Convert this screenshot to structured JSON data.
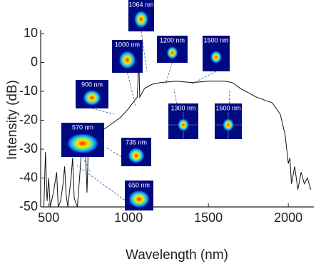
{
  "chart_data": {
    "type": "line",
    "xlabel": "Wavelength (nm)",
    "ylabel": "Intensity (dB)",
    "xlim": [
      450,
      2160
    ],
    "ylim": [
      -50,
      10
    ],
    "xticks": [
      500,
      1000,
      1500,
      2000
    ],
    "yticks": [
      -50,
      -40,
      -30,
      -20,
      -10,
      0,
      10
    ],
    "series": [
      {
        "color": "#111111",
        "x": [
          470,
          480,
          490,
          500,
          510,
          530,
          550,
          560,
          575,
          590,
          600,
          610,
          620,
          640,
          650,
          660,
          680,
          700,
          710,
          720,
          730,
          740,
          750,
          760,
          780,
          800,
          850,
          900,
          950,
          1000,
          1040,
          1055,
          1062,
          1064,
          1066,
          1070,
          1100,
          1150,
          1200,
          1300,
          1400,
          1500,
          1600,
          1650,
          1700,
          1800,
          1900,
          1950,
          1980,
          2000,
          2010,
          2020,
          2040,
          2060,
          2080,
          2100,
          2120,
          2140
        ],
        "values": [
          -50,
          -31,
          -48,
          -40,
          -50,
          -45,
          -38,
          -50,
          -48,
          -42,
          -36,
          -46,
          -50,
          -40,
          -33,
          -47,
          -50,
          -35,
          -28,
          -27,
          -30,
          -45,
          -25,
          -24,
          -26,
          -24,
          -23,
          -21,
          -19,
          -16,
          -13,
          -12,
          -2,
          1,
          -3,
          -12,
          -9,
          -7.5,
          -7,
          -6.5,
          -7,
          -6.5,
          -6.5,
          -7,
          -9,
          -12,
          -14,
          -18,
          -25,
          -35,
          -33,
          -42,
          -36,
          -44,
          -38,
          -42,
          -40,
          -44
        ]
      }
    ],
    "annotations": [
      "1064 nm",
      "1000 nm",
      "900 nm",
      "570 nm",
      "735 nm",
      "650 nm",
      "1200 nm",
      "1500 nm",
      "1300 nm",
      "1600 nm"
    ]
  }
}
